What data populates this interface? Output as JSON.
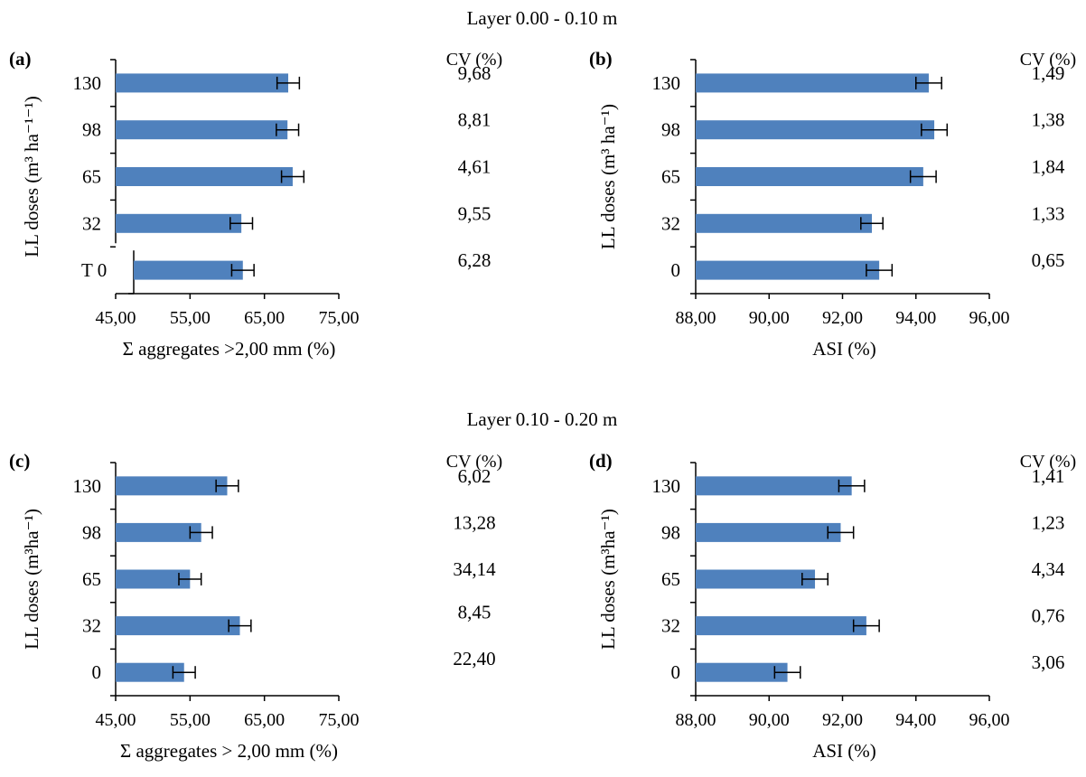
{
  "layer_titles": [
    "Layer 0.00 - 0.10 m",
    "Layer 0.10 - 0.20 m"
  ],
  "colors": {
    "bar": "#4f81bd",
    "axis": "#000000",
    "error_bar": "#000000"
  },
  "chart_data": [
    {
      "type": "bar",
      "orientation": "horizontal",
      "panel": "(a)",
      "layer": "Layer 0.00 - 0.10 m",
      "xlabel": "Σ aggregates >2,00 mm (%)",
      "ylabel": "LL doses (m³ ha⁻¹⁻¹)",
      "categories": [
        "130",
        "98",
        "65",
        "32",
        "T 0"
      ],
      "values": [
        68.2,
        68.1,
        68.8,
        61.9,
        62.1
      ],
      "errors": [
        1.5,
        1.5,
        1.5,
        1.5,
        1.5
      ],
      "xlim": [
        45,
        75
      ],
      "xticks": [
        "45,00",
        "55,00",
        "65,00",
        "75,00"
      ],
      "cv_header": "CV (%)",
      "cv": [
        "9,68",
        "8,81",
        "4,61",
        "9,55",
        "6,28"
      ],
      "grid": false
    },
    {
      "type": "bar",
      "orientation": "horizontal",
      "panel": "(b)",
      "layer": "Layer 0.00 - 0.10 m",
      "xlabel": "ASI (%)",
      "ylabel": "LL doses (m³ ha⁻¹)",
      "categories": [
        "130",
        "98",
        "65",
        "32",
        "0"
      ],
      "values": [
        94.35,
        94.5,
        94.2,
        92.8,
        93.0
      ],
      "errors": [
        0.35,
        0.35,
        0.35,
        0.3,
        0.35
      ],
      "xlim": [
        88,
        96
      ],
      "xticks": [
        "88,00",
        "90,00",
        "92,00",
        "94,00",
        "96,00"
      ],
      "cv_header": "CV (%)",
      "cv": [
        "1,49",
        "1,38",
        "1,84",
        "1,33",
        "0,65"
      ],
      "grid": false
    },
    {
      "type": "bar",
      "orientation": "horizontal",
      "panel": "(c)",
      "layer": "Layer 0.10 - 0.20 m",
      "xlabel": "Σ aggregates > 2,00 mm (%)",
      "ylabel": "LL doses (m³ha⁻¹)",
      "categories": [
        "130",
        "98",
        "65",
        "32",
        "0"
      ],
      "values": [
        60.0,
        56.5,
        55.0,
        61.7,
        54.2
      ],
      "errors": [
        1.5,
        1.5,
        1.5,
        1.5,
        1.5
      ],
      "xlim": [
        45,
        75
      ],
      "xticks": [
        "45,00",
        "55,00",
        "65,00",
        "75,00"
      ],
      "cv_header": "CV (%)",
      "cv": [
        "6,02",
        "13,28",
        "34,14",
        "8,45",
        "22,40"
      ],
      "grid": false
    },
    {
      "type": "bar",
      "orientation": "horizontal",
      "panel": "(d)",
      "layer": "Layer 0.10 - 0.20 m",
      "xlabel": "ASI (%)",
      "ylabel": "LL doses (m³ha⁻¹)",
      "categories": [
        "130",
        "98",
        "65",
        "32",
        "0"
      ],
      "values": [
        92.25,
        91.95,
        91.25,
        92.65,
        90.5
      ],
      "errors": [
        0.35,
        0.35,
        0.35,
        0.35,
        0.35
      ],
      "xlim": [
        88,
        96
      ],
      "xticks": [
        "88,00",
        "90,00",
        "92,00",
        "94,00",
        "96,00"
      ],
      "cv_header": "CV (%)",
      "cv": [
        "1,41",
        "1,23",
        "4,34",
        "0,76",
        "3,06"
      ],
      "grid": false
    }
  ]
}
